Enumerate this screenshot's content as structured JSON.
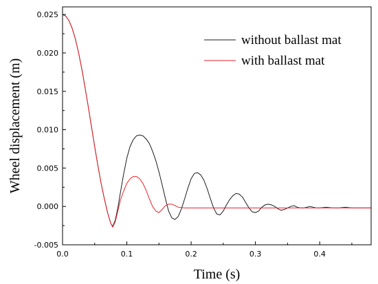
{
  "chart_data": {
    "type": "line",
    "xlabel": "Time (s)",
    "ylabel": "Wheel displacement (m)",
    "xlim": [
      0.0,
      0.48
    ],
    "ylim": [
      -0.005,
      0.026
    ],
    "x_ticks": [
      0.0,
      0.1,
      0.2,
      0.3,
      0.4
    ],
    "x_tick_labels": [
      "0.0",
      "0.1",
      "0.2",
      "0.3",
      "0.4"
    ],
    "y_ticks": [
      -0.005,
      0.0,
      0.005,
      0.01,
      0.015,
      0.02,
      0.025
    ],
    "y_tick_labels": [
      "-0.005",
      "0.000",
      "0.005",
      "0.010",
      "0.015",
      "0.020",
      "0.025"
    ],
    "grid": false,
    "legend_position": "top-right",
    "series": [
      {
        "name": "without ballast mat",
        "color": "#1a1a1a",
        "x": [
          0.0,
          0.005,
          0.01,
          0.015,
          0.02,
          0.025,
          0.03,
          0.035,
          0.04,
          0.045,
          0.05,
          0.055,
          0.06,
          0.065,
          0.07,
          0.075,
          0.078,
          0.082,
          0.086,
          0.09,
          0.095,
          0.1,
          0.105,
          0.11,
          0.115,
          0.12,
          0.125,
          0.13,
          0.135,
          0.14,
          0.145,
          0.15,
          0.155,
          0.16,
          0.165,
          0.17,
          0.175,
          0.18,
          0.185,
          0.19,
          0.195,
          0.2,
          0.205,
          0.21,
          0.215,
          0.22,
          0.225,
          0.23,
          0.235,
          0.24,
          0.245,
          0.25,
          0.255,
          0.26,
          0.265,
          0.27,
          0.275,
          0.28,
          0.285,
          0.29,
          0.295,
          0.3,
          0.305,
          0.31,
          0.315,
          0.32,
          0.325,
          0.33,
          0.335,
          0.34,
          0.345,
          0.35,
          0.355,
          0.36,
          0.365,
          0.37,
          0.375,
          0.38,
          0.385,
          0.39,
          0.395,
          0.4,
          0.41,
          0.42,
          0.43,
          0.44,
          0.45,
          0.46,
          0.47,
          0.48
        ],
        "y": [
          0.025,
          0.0248,
          0.0242,
          0.0232,
          0.0218,
          0.02,
          0.0179,
          0.0155,
          0.013,
          0.0104,
          0.0078,
          0.0053,
          0.003,
          0.001,
          -0.0008,
          -0.0022,
          -0.0026,
          -0.0018,
          -0.0002,
          0.0018,
          0.0042,
          0.0063,
          0.0078,
          0.0087,
          0.0092,
          0.0093,
          0.0092,
          0.0088,
          0.0082,
          0.0072,
          0.006,
          0.0045,
          0.0028,
          0.001,
          -0.0006,
          -0.0015,
          -0.0017,
          -0.0013,
          -0.0003,
          0.001,
          0.0024,
          0.0036,
          0.0043,
          0.0044,
          0.0041,
          0.0034,
          0.0023,
          0.001,
          -0.0002,
          -0.001,
          -0.0011,
          -0.0006,
          0.0002,
          0.0009,
          0.0014,
          0.0017,
          0.0016,
          0.0012,
          0.0005,
          -0.0002,
          -0.0007,
          -0.0008,
          -0.0006,
          -0.0001,
          0.0002,
          0.0003,
          0.0002,
          0.0,
          -0.0003,
          -0.0005,
          -0.0004,
          -0.0002,
          0.0,
          0.0001,
          -0.0001,
          -0.0002,
          -0.0002,
          -0.0001,
          0.0,
          -0.0001,
          -0.0002,
          -0.0002,
          -0.0001,
          -0.0002,
          -0.0002,
          -0.0001,
          -0.0002,
          -0.0002,
          -0.0002,
          -0.0002
        ]
      },
      {
        "name": "with ballast mat",
        "color": "#e8202a",
        "x": [
          0.0,
          0.005,
          0.01,
          0.015,
          0.02,
          0.025,
          0.03,
          0.035,
          0.04,
          0.045,
          0.05,
          0.055,
          0.06,
          0.065,
          0.07,
          0.075,
          0.078,
          0.082,
          0.086,
          0.09,
          0.095,
          0.1,
          0.105,
          0.11,
          0.115,
          0.12,
          0.125,
          0.13,
          0.135,
          0.14,
          0.145,
          0.15,
          0.155,
          0.16,
          0.165,
          0.17,
          0.175,
          0.18,
          0.19,
          0.2,
          0.21,
          0.22,
          0.23,
          0.24,
          0.25,
          0.26,
          0.28,
          0.3,
          0.32,
          0.34,
          0.36,
          0.38,
          0.4,
          0.42,
          0.44,
          0.46,
          0.48
        ],
        "y": [
          0.025,
          0.0248,
          0.0242,
          0.0232,
          0.0218,
          0.02,
          0.0179,
          0.0155,
          0.013,
          0.0104,
          0.0078,
          0.0053,
          0.003,
          0.001,
          -0.0008,
          -0.0022,
          -0.0027,
          -0.002,
          -0.0006,
          0.0008,
          0.002,
          0.003,
          0.0036,
          0.0039,
          0.0039,
          0.0036,
          0.003,
          0.0021,
          0.001,
          0.0,
          -0.0006,
          -0.0008,
          -0.0004,
          0.0001,
          0.0003,
          0.0003,
          0.0001,
          -0.0001,
          -0.0002,
          -0.0002,
          -0.0002,
          -0.0002,
          -0.0002,
          -0.0002,
          -0.0002,
          -0.0002,
          -0.0002,
          -0.0002,
          -0.0002,
          -0.0002,
          -0.0002,
          -0.0002,
          -0.0002,
          -0.0002,
          -0.0002,
          -0.0002,
          -0.0002
        ]
      }
    ]
  }
}
